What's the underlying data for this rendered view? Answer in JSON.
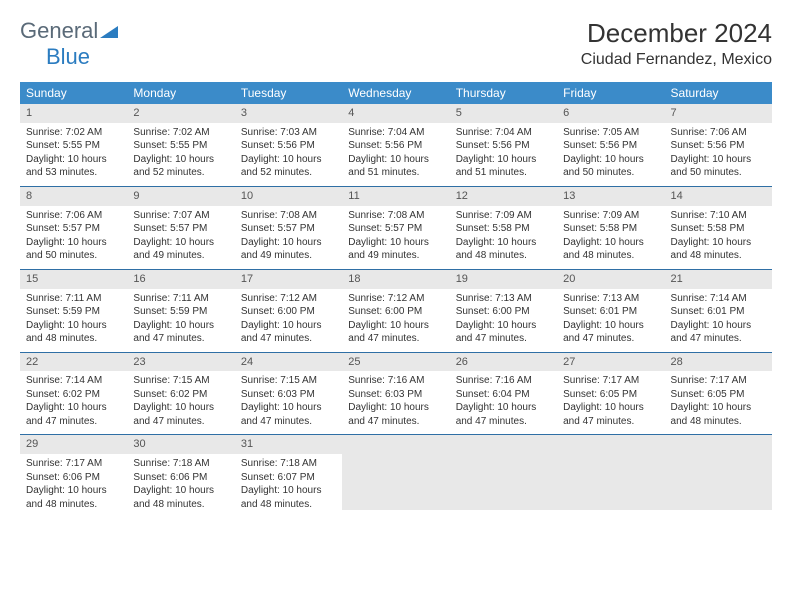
{
  "brand": {
    "general": "General",
    "blue": "Blue"
  },
  "title": "December 2024",
  "location": "Ciudad Fernandez, Mexico",
  "colors": {
    "header_bg": "#3b8bc9",
    "header_text": "#ffffff",
    "daynum_bg": "#e8e8e8",
    "row_divider": "#2f6fa5",
    "logo_gray": "#5a6a78",
    "logo_blue": "#2b7cc0"
  },
  "weekdays": [
    "Sunday",
    "Monday",
    "Tuesday",
    "Wednesday",
    "Thursday",
    "Friday",
    "Saturday"
  ],
  "weeks": [
    [
      {
        "n": "1",
        "sr": "Sunrise: 7:02 AM",
        "ss": "Sunset: 5:55 PM",
        "d1": "Daylight: 10 hours",
        "d2": "and 53 minutes."
      },
      {
        "n": "2",
        "sr": "Sunrise: 7:02 AM",
        "ss": "Sunset: 5:55 PM",
        "d1": "Daylight: 10 hours",
        "d2": "and 52 minutes."
      },
      {
        "n": "3",
        "sr": "Sunrise: 7:03 AM",
        "ss": "Sunset: 5:56 PM",
        "d1": "Daylight: 10 hours",
        "d2": "and 52 minutes."
      },
      {
        "n": "4",
        "sr": "Sunrise: 7:04 AM",
        "ss": "Sunset: 5:56 PM",
        "d1": "Daylight: 10 hours",
        "d2": "and 51 minutes."
      },
      {
        "n": "5",
        "sr": "Sunrise: 7:04 AM",
        "ss": "Sunset: 5:56 PM",
        "d1": "Daylight: 10 hours",
        "d2": "and 51 minutes."
      },
      {
        "n": "6",
        "sr": "Sunrise: 7:05 AM",
        "ss": "Sunset: 5:56 PM",
        "d1": "Daylight: 10 hours",
        "d2": "and 50 minutes."
      },
      {
        "n": "7",
        "sr": "Sunrise: 7:06 AM",
        "ss": "Sunset: 5:56 PM",
        "d1": "Daylight: 10 hours",
        "d2": "and 50 minutes."
      }
    ],
    [
      {
        "n": "8",
        "sr": "Sunrise: 7:06 AM",
        "ss": "Sunset: 5:57 PM",
        "d1": "Daylight: 10 hours",
        "d2": "and 50 minutes."
      },
      {
        "n": "9",
        "sr": "Sunrise: 7:07 AM",
        "ss": "Sunset: 5:57 PM",
        "d1": "Daylight: 10 hours",
        "d2": "and 49 minutes."
      },
      {
        "n": "10",
        "sr": "Sunrise: 7:08 AM",
        "ss": "Sunset: 5:57 PM",
        "d1": "Daylight: 10 hours",
        "d2": "and 49 minutes."
      },
      {
        "n": "11",
        "sr": "Sunrise: 7:08 AM",
        "ss": "Sunset: 5:57 PM",
        "d1": "Daylight: 10 hours",
        "d2": "and 49 minutes."
      },
      {
        "n": "12",
        "sr": "Sunrise: 7:09 AM",
        "ss": "Sunset: 5:58 PM",
        "d1": "Daylight: 10 hours",
        "d2": "and 48 minutes."
      },
      {
        "n": "13",
        "sr": "Sunrise: 7:09 AM",
        "ss": "Sunset: 5:58 PM",
        "d1": "Daylight: 10 hours",
        "d2": "and 48 minutes."
      },
      {
        "n": "14",
        "sr": "Sunrise: 7:10 AM",
        "ss": "Sunset: 5:58 PM",
        "d1": "Daylight: 10 hours",
        "d2": "and 48 minutes."
      }
    ],
    [
      {
        "n": "15",
        "sr": "Sunrise: 7:11 AM",
        "ss": "Sunset: 5:59 PM",
        "d1": "Daylight: 10 hours",
        "d2": "and 48 minutes."
      },
      {
        "n": "16",
        "sr": "Sunrise: 7:11 AM",
        "ss": "Sunset: 5:59 PM",
        "d1": "Daylight: 10 hours",
        "d2": "and 47 minutes."
      },
      {
        "n": "17",
        "sr": "Sunrise: 7:12 AM",
        "ss": "Sunset: 6:00 PM",
        "d1": "Daylight: 10 hours",
        "d2": "and 47 minutes."
      },
      {
        "n": "18",
        "sr": "Sunrise: 7:12 AM",
        "ss": "Sunset: 6:00 PM",
        "d1": "Daylight: 10 hours",
        "d2": "and 47 minutes."
      },
      {
        "n": "19",
        "sr": "Sunrise: 7:13 AM",
        "ss": "Sunset: 6:00 PM",
        "d1": "Daylight: 10 hours",
        "d2": "and 47 minutes."
      },
      {
        "n": "20",
        "sr": "Sunrise: 7:13 AM",
        "ss": "Sunset: 6:01 PM",
        "d1": "Daylight: 10 hours",
        "d2": "and 47 minutes."
      },
      {
        "n": "21",
        "sr": "Sunrise: 7:14 AM",
        "ss": "Sunset: 6:01 PM",
        "d1": "Daylight: 10 hours",
        "d2": "and 47 minutes."
      }
    ],
    [
      {
        "n": "22",
        "sr": "Sunrise: 7:14 AM",
        "ss": "Sunset: 6:02 PM",
        "d1": "Daylight: 10 hours",
        "d2": "and 47 minutes."
      },
      {
        "n": "23",
        "sr": "Sunrise: 7:15 AM",
        "ss": "Sunset: 6:02 PM",
        "d1": "Daylight: 10 hours",
        "d2": "and 47 minutes."
      },
      {
        "n": "24",
        "sr": "Sunrise: 7:15 AM",
        "ss": "Sunset: 6:03 PM",
        "d1": "Daylight: 10 hours",
        "d2": "and 47 minutes."
      },
      {
        "n": "25",
        "sr": "Sunrise: 7:16 AM",
        "ss": "Sunset: 6:03 PM",
        "d1": "Daylight: 10 hours",
        "d2": "and 47 minutes."
      },
      {
        "n": "26",
        "sr": "Sunrise: 7:16 AM",
        "ss": "Sunset: 6:04 PM",
        "d1": "Daylight: 10 hours",
        "d2": "and 47 minutes."
      },
      {
        "n": "27",
        "sr": "Sunrise: 7:17 AM",
        "ss": "Sunset: 6:05 PM",
        "d1": "Daylight: 10 hours",
        "d2": "and 47 minutes."
      },
      {
        "n": "28",
        "sr": "Sunrise: 7:17 AM",
        "ss": "Sunset: 6:05 PM",
        "d1": "Daylight: 10 hours",
        "d2": "and 48 minutes."
      }
    ],
    [
      {
        "n": "29",
        "sr": "Sunrise: 7:17 AM",
        "ss": "Sunset: 6:06 PM",
        "d1": "Daylight: 10 hours",
        "d2": "and 48 minutes."
      },
      {
        "n": "30",
        "sr": "Sunrise: 7:18 AM",
        "ss": "Sunset: 6:06 PM",
        "d1": "Daylight: 10 hours",
        "d2": "and 48 minutes."
      },
      {
        "n": "31",
        "sr": "Sunrise: 7:18 AM",
        "ss": "Sunset: 6:07 PM",
        "d1": "Daylight: 10 hours",
        "d2": "and 48 minutes."
      },
      {
        "empty": true
      },
      {
        "empty": true
      },
      {
        "empty": true
      },
      {
        "empty": true
      }
    ]
  ]
}
